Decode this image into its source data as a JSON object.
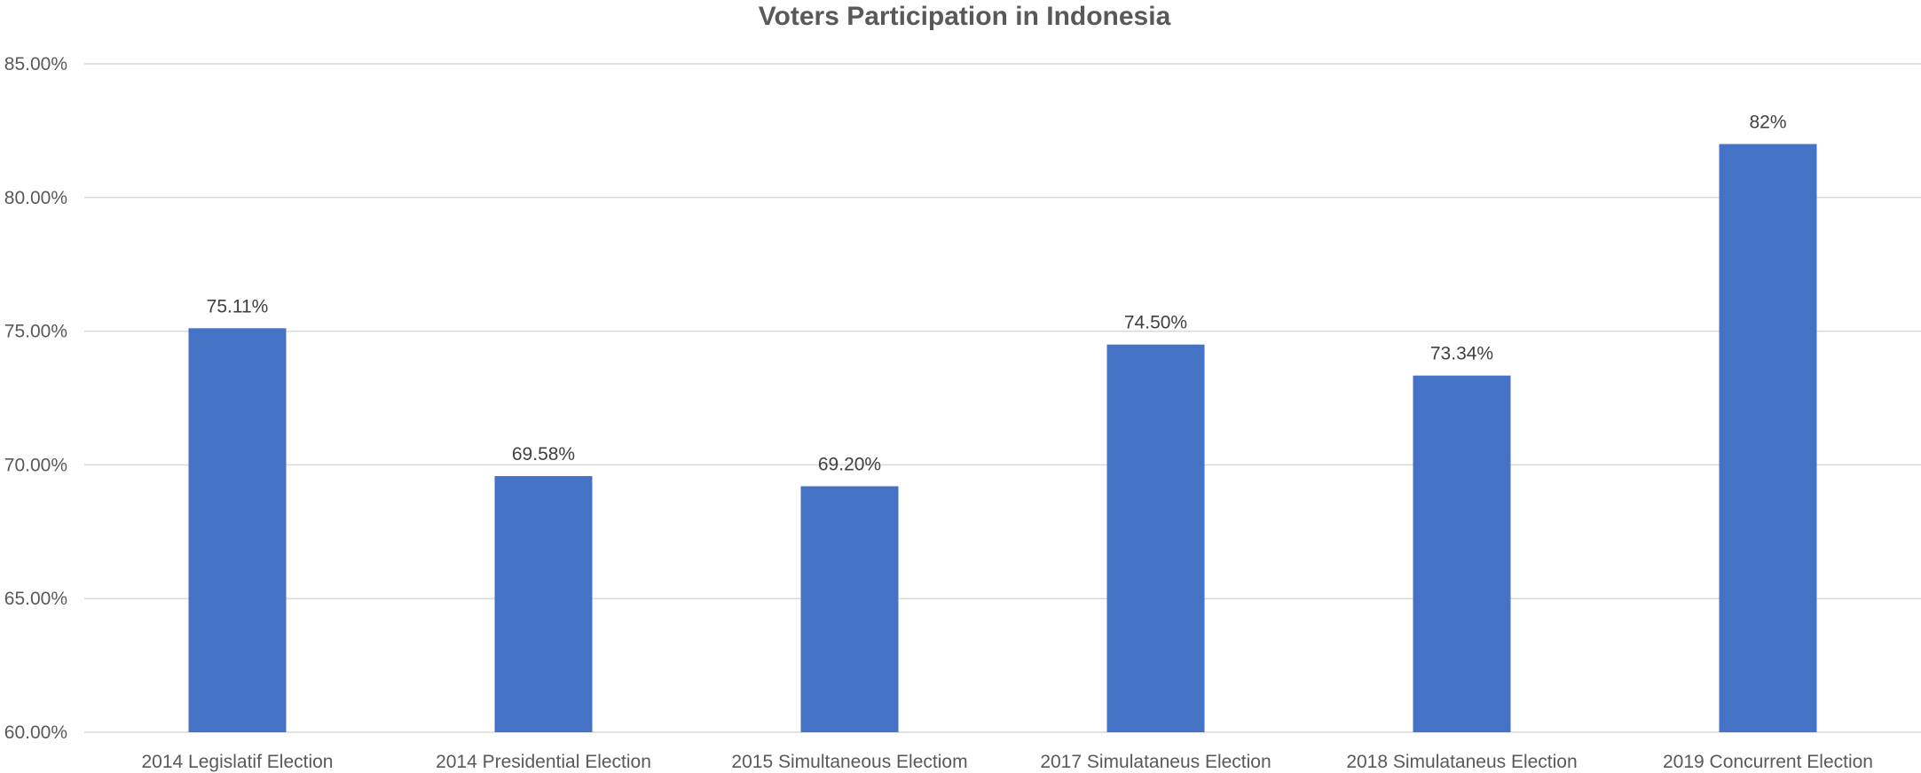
{
  "chart_data": {
    "type": "bar",
    "title": "Voters Participation in Indonesia",
    "xlabel": "",
    "ylabel": "",
    "categories": [
      "2014 Legislatif Election",
      "2014 Presidential Election",
      "2015 Simultaneous Electiom",
      "2017 Simulataneus Election",
      "2018 Simulataneus Election",
      "2019 Concurrent Election"
    ],
    "values": [
      75.11,
      69.58,
      69.2,
      74.5,
      73.34,
      82
    ],
    "data_labels": [
      "75.11%",
      "69.58%",
      "69.20%",
      "74.50%",
      "73.34%",
      "82%"
    ],
    "ylim": [
      60,
      85
    ],
    "y_ticks": [
      60,
      65,
      70,
      75,
      80,
      85
    ],
    "y_tick_labels": [
      "60.00%",
      "65.00%",
      "70.00%",
      "75.00%",
      "80.00%",
      "85.00%"
    ],
    "grid": true,
    "legend": "none",
    "bar_color": "#4472c4",
    "grid_color": "#d9d9d9",
    "text_color": "#595959"
  }
}
